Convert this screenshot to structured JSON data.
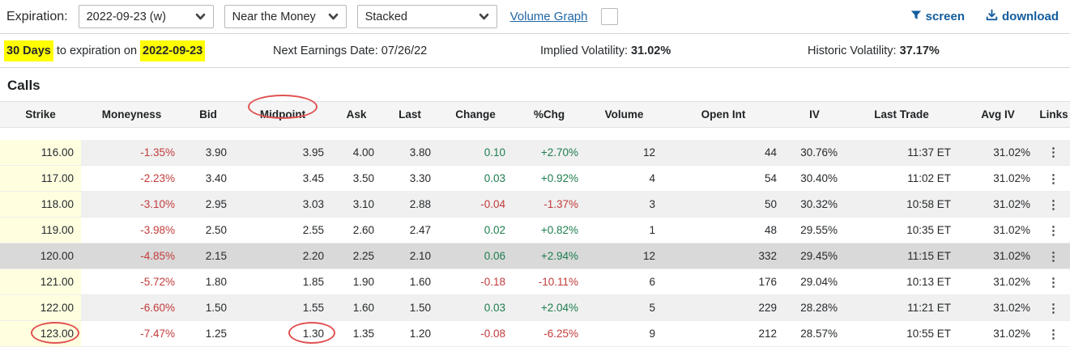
{
  "toolbar": {
    "expiration_label": "Expiration:",
    "expiration_value": "2022-09-23 (w)",
    "moneyness_filter_value": "Near the Money",
    "view_mode_value": "Stacked",
    "volume_graph_label": "Volume Graph",
    "screen_label": "screen",
    "download_label": "download"
  },
  "info_bar": {
    "days_highlight": "30 Days",
    "days_rest": " to expiration on ",
    "date_highlight": "2022-09-23",
    "next_earnings_label": "Next Earnings Date: ",
    "next_earnings_value": "07/26/22",
    "implied_vol_label": "Implied Volatility: ",
    "implied_vol_value": "31.02%",
    "historic_vol_label": "Historic Volatility: ",
    "historic_vol_value": "37.17%"
  },
  "section_title": "Calls",
  "table": {
    "columns": [
      "Strike",
      "Moneyness",
      "Bid",
      "Midpoint",
      "Ask",
      "Last",
      "Change",
      "%Chg",
      "Volume",
      "Open Int",
      "IV",
      "Last Trade",
      "Avg IV",
      "Links"
    ],
    "rows": [
      {
        "strike": "116.00",
        "moneyness": "-1.35%",
        "bid": "3.90",
        "midpoint": "3.95",
        "ask": "4.00",
        "last": "3.80",
        "change": "0.10",
        "pct_chg": "+2.70%",
        "volume": "12",
        "open_int": "44",
        "iv": "30.76%",
        "last_trade": "11:37 ET",
        "avg_iv": "31.02%",
        "highlight": false
      },
      {
        "strike": "117.00",
        "moneyness": "-2.23%",
        "bid": "3.40",
        "midpoint": "3.45",
        "ask": "3.50",
        "last": "3.30",
        "change": "0.03",
        "pct_chg": "+0.92%",
        "volume": "4",
        "open_int": "54",
        "iv": "30.40%",
        "last_trade": "11:02 ET",
        "avg_iv": "31.02%",
        "highlight": false
      },
      {
        "strike": "118.00",
        "moneyness": "-3.10%",
        "bid": "2.95",
        "midpoint": "3.03",
        "ask": "3.10",
        "last": "2.88",
        "change": "-0.04",
        "pct_chg": "-1.37%",
        "volume": "3",
        "open_int": "50",
        "iv": "30.32%",
        "last_trade": "10:58 ET",
        "avg_iv": "31.02%",
        "highlight": false
      },
      {
        "strike": "119.00",
        "moneyness": "-3.98%",
        "bid": "2.50",
        "midpoint": "2.55",
        "ask": "2.60",
        "last": "2.47",
        "change": "0.02",
        "pct_chg": "+0.82%",
        "volume": "1",
        "open_int": "48",
        "iv": "29.55%",
        "last_trade": "10:35 ET",
        "avg_iv": "31.02%",
        "highlight": false
      },
      {
        "strike": "120.00",
        "moneyness": "-4.85%",
        "bid": "2.15",
        "midpoint": "2.20",
        "ask": "2.25",
        "last": "2.10",
        "change": "0.06",
        "pct_chg": "+2.94%",
        "volume": "12",
        "open_int": "332",
        "iv": "29.45%",
        "last_trade": "11:15 ET",
        "avg_iv": "31.02%",
        "highlight": true
      },
      {
        "strike": "121.00",
        "moneyness": "-5.72%",
        "bid": "1.80",
        "midpoint": "1.85",
        "ask": "1.90",
        "last": "1.60",
        "change": "-0.18",
        "pct_chg": "-10.11%",
        "volume": "6",
        "open_int": "176",
        "iv": "29.04%",
        "last_trade": "10:13 ET",
        "avg_iv": "31.02%",
        "highlight": false
      },
      {
        "strike": "122.00",
        "moneyness": "-6.60%",
        "bid": "1.50",
        "midpoint": "1.55",
        "ask": "1.60",
        "last": "1.50",
        "change": "0.03",
        "pct_chg": "+2.04%",
        "volume": "5",
        "open_int": "229",
        "iv": "28.28%",
        "last_trade": "11:21 ET",
        "avg_iv": "31.02%",
        "highlight": false
      },
      {
        "strike": "123.00",
        "moneyness": "-7.47%",
        "bid": "1.25",
        "midpoint": "1.30",
        "ask": "1.35",
        "last": "1.20",
        "change": "-0.08",
        "pct_chg": "-6.25%",
        "volume": "9",
        "open_int": "212",
        "iv": "28.57%",
        "last_trade": "10:55 ET",
        "avg_iv": "31.02%",
        "highlight": false
      }
    ]
  },
  "icons": {
    "chevron_down": "chevron-down",
    "filter": "filter-funnel",
    "download": "download-arrow-tray",
    "kebab": "⋮"
  },
  "colors": {
    "accent_blue": "#135d9e",
    "link_blue": "#2166a5",
    "highlight_yellow": "#ffff00",
    "strike_cell_bg": "#ffffe0",
    "row_alt_bg": "#f0f0f0",
    "selected_row_bg": "#d9d9d9",
    "negative_red": "#c23b3b",
    "positive_green": "#1d7d4d",
    "annotation_red": "#e05151"
  },
  "annotations": [
    {
      "target": "midpoint-column-header",
      "shape": "ellipse"
    },
    {
      "target": "strike-123.00-cell",
      "shape": "ellipse"
    },
    {
      "target": "midpoint-1.30-cell",
      "shape": "ellipse"
    }
  ]
}
